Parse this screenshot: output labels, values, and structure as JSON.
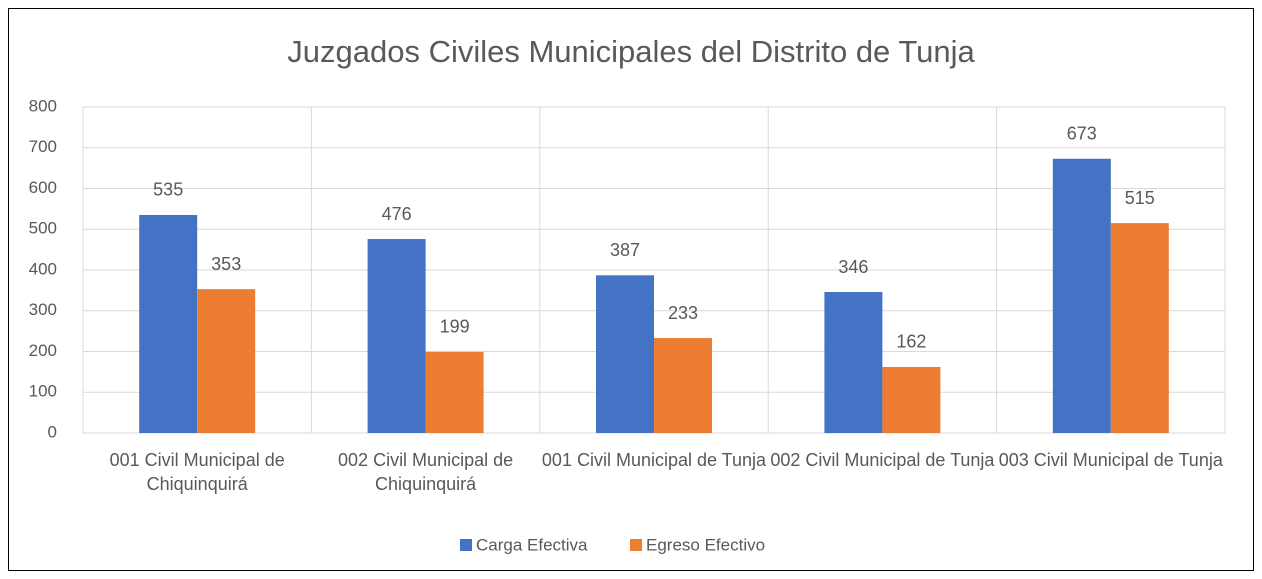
{
  "chart_data": {
    "type": "bar",
    "title": "Juzgados Civiles Municipales del Distrito de Tunja",
    "categories": [
      "001 Civil Municipal de Chiquinquirá",
      "002 Civil Municipal de Chiquinquirá",
      "001 Civil Municipal de Tunja",
      "002 Civil Municipal de Tunja",
      "003 Civil Municipal de Tunja"
    ],
    "series": [
      {
        "name": "Carga Efectiva",
        "color": "#4472c4",
        "values": [
          535,
          476,
          387,
          346,
          673
        ]
      },
      {
        "name": "Egreso Efectivo",
        "color": "#ed7d31",
        "values": [
          353,
          199,
          233,
          162,
          515
        ]
      }
    ],
    "ylim": [
      0,
      800
    ],
    "yticks": [
      0,
      100,
      200,
      300,
      400,
      500,
      600,
      700,
      800
    ],
    "grid": true,
    "legend": "bottom"
  }
}
